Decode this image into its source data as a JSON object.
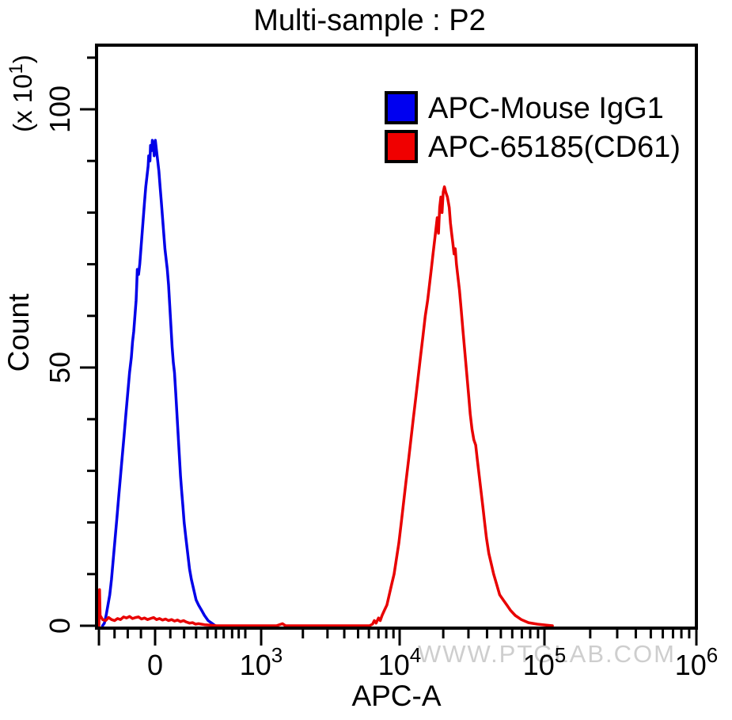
{
  "title": "Multi-sample : P2",
  "watermark": "WWW.PTGLAB.COM",
  "colors": {
    "blue": "#0000f0",
    "red": "#f00000",
    "frame": "#000000",
    "watermark": "#c6c6c6"
  },
  "legend": {
    "items": [
      {
        "label": "APC-Mouse IgG1",
        "color": "#0000f0"
      },
      {
        "label": "APC-65185(CD61)",
        "color": "#f00000"
      }
    ]
  },
  "chart_data": {
    "type": "line",
    "subtype": "flow-cytometry-histogram-overlay",
    "title": "Multi-sample : P2",
    "xlabel": "APC-A",
    "ylabel": "Count",
    "y_unit": {
      "prefix": "(x 10",
      "sup": "1",
      "suffix": ")"
    },
    "x_axis": {
      "scale": "logicle",
      "edge_tick_frac": 0.004,
      "majors": [
        {
          "label": "0",
          "frac": 0.0976
        },
        {
          "base": "10",
          "exp": "3",
          "frac": 0.2744
        },
        {
          "base": "10",
          "exp": "4",
          "frac": 0.5053
        },
        {
          "base": "10",
          "exp": "5",
          "frac": 0.7467
        },
        {
          "base": "10",
          "exp": "6",
          "frac": 1.0
        }
      ],
      "minors": [
        0.03,
        0.052,
        0.074,
        0.123,
        0.146,
        0.166,
        0.185,
        0.199,
        0.212,
        0.226,
        0.237,
        0.248,
        0.344,
        0.385,
        0.413,
        0.436,
        0.454,
        0.47,
        0.483,
        0.495,
        0.578,
        0.62,
        0.651,
        0.674,
        0.693,
        0.709,
        0.723,
        0.736,
        0.823,
        0.868,
        0.899,
        0.924,
        0.944,
        0.961,
        0.975,
        0.988
      ]
    },
    "y_axis": {
      "range": [
        0,
        113
      ],
      "majors": [
        {
          "label": "0",
          "count": 0
        },
        {
          "label": "50",
          "count": 50
        },
        {
          "label": "100",
          "count": 100
        }
      ],
      "minors": [
        10,
        20,
        30,
        40,
        60,
        70,
        80,
        90,
        110
      ]
    },
    "series": [
      {
        "name": "APC-Mouse IgG1",
        "color": "#0000e8",
        "peak": {
          "x_frac": 0.098,
          "count": 94
        },
        "points": [
          [
            0.01,
            0
          ],
          [
            0.013,
            0.5
          ],
          [
            0.016,
            2
          ],
          [
            0.019,
            4
          ],
          [
            0.022,
            6
          ],
          [
            0.025,
            9
          ],
          [
            0.028,
            13
          ],
          [
            0.031,
            17
          ],
          [
            0.034,
            21
          ],
          [
            0.037,
            25
          ],
          [
            0.04,
            29
          ],
          [
            0.043,
            33
          ],
          [
            0.046,
            37
          ],
          [
            0.049,
            41
          ],
          [
            0.052,
            45
          ],
          [
            0.055,
            49
          ],
          [
            0.058,
            52
          ],
          [
            0.06,
            55
          ],
          [
            0.062,
            57
          ],
          [
            0.064,
            60
          ],
          [
            0.066,
            63
          ],
          [
            0.067,
            66
          ],
          [
            0.068,
            69
          ],
          [
            0.07,
            68
          ],
          [
            0.072,
            70
          ],
          [
            0.074,
            73
          ],
          [
            0.076,
            76
          ],
          [
            0.078,
            79
          ],
          [
            0.08,
            82
          ],
          [
            0.082,
            85
          ],
          [
            0.084,
            87
          ],
          [
            0.086,
            89
          ],
          [
            0.087,
            91
          ],
          [
            0.089,
            90
          ],
          [
            0.09,
            93
          ],
          [
            0.092,
            92
          ],
          [
            0.093,
            94
          ],
          [
            0.095,
            93
          ],
          [
            0.096,
            91
          ],
          [
            0.098,
            94
          ],
          [
            0.1,
            92
          ],
          [
            0.102,
            90
          ],
          [
            0.104,
            88
          ],
          [
            0.106,
            85
          ],
          [
            0.108,
            82
          ],
          [
            0.11,
            79
          ],
          [
            0.112,
            76
          ],
          [
            0.114,
            73
          ],
          [
            0.116,
            71
          ],
          [
            0.118,
            69
          ],
          [
            0.12,
            66
          ],
          [
            0.122,
            62
          ],
          [
            0.124,
            58
          ],
          [
            0.126,
            54
          ],
          [
            0.128,
            51
          ],
          [
            0.13,
            49
          ],
          [
            0.132,
            45
          ],
          [
            0.134,
            41
          ],
          [
            0.136,
            37
          ],
          [
            0.138,
            33
          ],
          [
            0.14,
            29
          ],
          [
            0.142,
            26
          ],
          [
            0.144,
            23
          ],
          [
            0.146,
            20
          ],
          [
            0.149,
            17
          ],
          [
            0.152,
            14
          ],
          [
            0.155,
            11
          ],
          [
            0.158,
            9
          ],
          [
            0.162,
            7
          ],
          [
            0.166,
            5
          ],
          [
            0.17,
            4
          ],
          [
            0.175,
            3
          ],
          [
            0.18,
            2
          ],
          [
            0.186,
            1
          ],
          [
            0.192,
            0.5
          ],
          [
            0.198,
            0
          ]
        ]
      },
      {
        "name": "APC-65185(CD61)",
        "color": "#e80000",
        "peak": {
          "x_frac": 0.58,
          "count": 85
        },
        "points": [
          [
            0.004,
            0
          ],
          [
            0.005,
            7
          ],
          [
            0.006,
            2
          ],
          [
            0.01,
            1.2
          ],
          [
            0.015,
            1.0
          ],
          [
            0.02,
            1.6
          ],
          [
            0.025,
            1.2
          ],
          [
            0.03,
            1.0
          ],
          [
            0.035,
            1.4
          ],
          [
            0.04,
            1.2
          ],
          [
            0.045,
            1.7
          ],
          [
            0.05,
            1.5
          ],
          [
            0.055,
            1.8
          ],
          [
            0.06,
            1.4
          ],
          [
            0.065,
            1.6
          ],
          [
            0.07,
            1.7
          ],
          [
            0.075,
            1.3
          ],
          [
            0.08,
            1.5
          ],
          [
            0.085,
            1.2
          ],
          [
            0.09,
            1.4
          ],
          [
            0.095,
            1.6
          ],
          [
            0.1,
            1.2
          ],
          [
            0.105,
            1.4
          ],
          [
            0.11,
            1.1
          ],
          [
            0.115,
            1.3
          ],
          [
            0.12,
            1.0
          ],
          [
            0.125,
            1.2
          ],
          [
            0.13,
            0.9
          ],
          [
            0.135,
            1.1
          ],
          [
            0.14,
            0.8
          ],
          [
            0.145,
            1.0
          ],
          [
            0.15,
            0.7
          ],
          [
            0.155,
            0.5
          ],
          [
            0.16,
            0.6
          ],
          [
            0.165,
            0.3
          ],
          [
            0.17,
            0.4
          ],
          [
            0.18,
            0.2
          ],
          [
            0.19,
            0.1
          ],
          [
            0.2,
            0
          ],
          [
            0.3,
            0
          ],
          [
            0.31,
            0.4
          ],
          [
            0.315,
            0
          ],
          [
            0.4,
            0
          ],
          [
            0.455,
            0
          ],
          [
            0.46,
            0.3
          ],
          [
            0.463,
            1
          ],
          [
            0.466,
            0.5
          ],
          [
            0.47,
            1.5
          ],
          [
            0.473,
            1
          ],
          [
            0.476,
            2
          ],
          [
            0.48,
            3
          ],
          [
            0.484,
            4
          ],
          [
            0.488,
            6
          ],
          [
            0.492,
            8
          ],
          [
            0.496,
            10
          ],
          [
            0.5,
            13
          ],
          [
            0.504,
            16
          ],
          [
            0.508,
            20
          ],
          [
            0.512,
            24
          ],
          [
            0.516,
            28
          ],
          [
            0.52,
            32
          ],
          [
            0.524,
            36
          ],
          [
            0.528,
            40
          ],
          [
            0.532,
            44
          ],
          [
            0.536,
            48
          ],
          [
            0.54,
            52
          ],
          [
            0.544,
            56
          ],
          [
            0.548,
            60
          ],
          [
            0.552,
            63
          ],
          [
            0.555,
            66
          ],
          [
            0.558,
            69
          ],
          [
            0.561,
            72
          ],
          [
            0.564,
            75
          ],
          [
            0.566,
            77
          ],
          [
            0.568,
            79
          ],
          [
            0.57,
            76
          ],
          [
            0.572,
            81
          ],
          [
            0.574,
            83
          ],
          [
            0.576,
            80
          ],
          [
            0.578,
            84
          ],
          [
            0.58,
            85
          ],
          [
            0.582,
            84
          ],
          [
            0.585,
            83
          ],
          [
            0.588,
            81
          ],
          [
            0.59,
            78
          ],
          [
            0.592,
            76
          ],
          [
            0.594,
            74
          ],
          [
            0.596,
            72
          ],
          [
            0.598,
            73
          ],
          [
            0.6,
            70
          ],
          [
            0.602,
            68
          ],
          [
            0.605,
            65
          ],
          [
            0.608,
            61
          ],
          [
            0.611,
            57
          ],
          [
            0.614,
            53
          ],
          [
            0.617,
            49
          ],
          [
            0.62,
            45
          ],
          [
            0.623,
            41
          ],
          [
            0.626,
            38
          ],
          [
            0.629,
            36
          ],
          [
            0.632,
            35
          ],
          [
            0.635,
            32
          ],
          [
            0.638,
            29
          ],
          [
            0.641,
            26
          ],
          [
            0.644,
            23
          ],
          [
            0.647,
            20
          ],
          [
            0.65,
            17
          ],
          [
            0.654,
            14
          ],
          [
            0.658,
            12
          ],
          [
            0.662,
            10
          ],
          [
            0.667,
            8
          ],
          [
            0.672,
            6
          ],
          [
            0.678,
            5
          ],
          [
            0.684,
            4
          ],
          [
            0.69,
            3
          ],
          [
            0.698,
            2
          ],
          [
            0.708,
            1.2
          ],
          [
            0.72,
            0.6
          ],
          [
            0.735,
            0.3
          ],
          [
            0.75,
            0.1
          ],
          [
            0.76,
            0
          ]
        ]
      }
    ]
  }
}
